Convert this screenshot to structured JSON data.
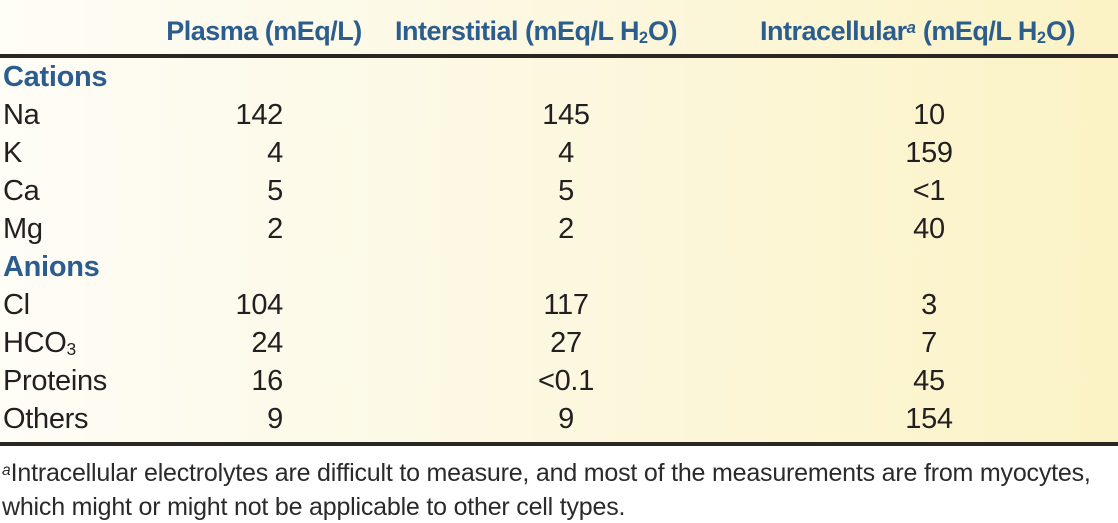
{
  "table": {
    "columns": [
      {
        "id": "plasma",
        "label_parts": [
          {
            "text": "Plasma (mEq/L)"
          }
        ]
      },
      {
        "id": "interstitial",
        "label_parts": [
          {
            "text": "Interstitial (mEq/L H"
          },
          {
            "sub": "2"
          },
          {
            "text": "O)"
          }
        ]
      },
      {
        "id": "intracellular",
        "label_parts": [
          {
            "text": "Intracellular"
          },
          {
            "sup": "a",
            "style": "italic"
          },
          {
            "text": " (mEq/L H"
          },
          {
            "sub": "2"
          },
          {
            "text": "O)"
          }
        ]
      }
    ],
    "rows": [
      {
        "type": "section",
        "label": "Cations"
      },
      {
        "type": "data",
        "label_parts": [
          {
            "text": "Na"
          }
        ],
        "values": [
          "142",
          "145",
          "10"
        ]
      },
      {
        "type": "data",
        "label_parts": [
          {
            "text": "K"
          }
        ],
        "values": [
          "4",
          "4",
          "159"
        ]
      },
      {
        "type": "data",
        "label_parts": [
          {
            "text": "Ca"
          }
        ],
        "values": [
          "5",
          "5",
          "<1"
        ]
      },
      {
        "type": "data",
        "label_parts": [
          {
            "text": "Mg"
          }
        ],
        "values": [
          "2",
          "2",
          "40"
        ]
      },
      {
        "type": "section",
        "label": "Anions"
      },
      {
        "type": "data",
        "label_parts": [
          {
            "text": "Cl"
          }
        ],
        "values": [
          "104",
          "117",
          "3"
        ]
      },
      {
        "type": "data",
        "label_parts": [
          {
            "text": "HCO"
          },
          {
            "sub": "3"
          }
        ],
        "values": [
          "24",
          "27",
          "7"
        ]
      },
      {
        "type": "data",
        "label_parts": [
          {
            "text": "Proteins"
          }
        ],
        "values": [
          "16",
          "<0.1",
          "45"
        ]
      },
      {
        "type": "data",
        "label_parts": [
          {
            "text": "Others"
          }
        ],
        "values": [
          "9",
          "9",
          "154"
        ]
      }
    ]
  },
  "footnote": {
    "marker": "a",
    "text": "Intracellular electrolytes are difficult to measure, and most of the measurements are from myocytes, which might or might not be applicable to other cell types."
  },
  "colors": {
    "header_blue": "#2c5d8f",
    "body_text": "#231f20",
    "rule": "#2a2622",
    "bg_left": "#fefdf6",
    "bg_right": "#fbf3c5",
    "footnote_bg": "#ffffff"
  }
}
